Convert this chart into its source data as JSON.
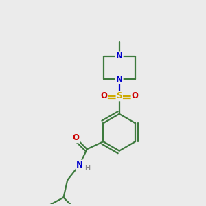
{
  "background_color": "#ebebeb",
  "atom_color_C": "#3d7a3d",
  "atom_color_N": "#0000cc",
  "atom_color_O": "#cc0000",
  "atom_color_S": "#ccaa00",
  "atom_color_H": "#888888",
  "bond_color": "#3d7a3d",
  "line_width": 1.6,
  "font_size_atoms": 8.5,
  "font_size_H": 7.0,
  "xlim": [
    0,
    10
  ],
  "ylim": [
    0,
    10
  ]
}
